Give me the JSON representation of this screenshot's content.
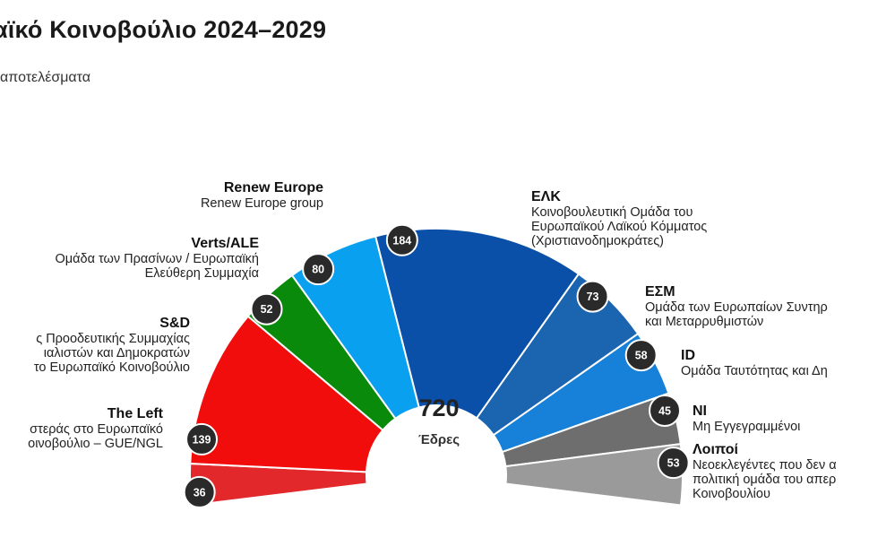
{
  "header": {
    "title": "αϊκό Κοινοβούλιο 2024–2029",
    "subtitle": "αποτελέσματα"
  },
  "chart_data": {
    "type": "parliament-hemicycle",
    "total_seats": "720",
    "total_label": "Έδρες",
    "groups": [
      {
        "key": "left",
        "name": "The Left",
        "desc": "στεράς στο Ευρωπαϊκό\nοινοβούλιο – GUE/NGL",
        "seats": 36,
        "color": "#e3282c"
      },
      {
        "key": "sd",
        "name": "S&D",
        "desc": "ς Προοδευτικής Συμμαχίας\nιαλιστών και Δημοκρατών\nτο Ευρωπαϊκό Κοινοβούλιο",
        "seats": 139,
        "color": "#f20d0d"
      },
      {
        "key": "verts",
        "name": "Verts/ALE",
        "desc": "Ομάδα των Πρασίνων / Ευρωπαϊκή\nΕλεύθερη Συμμαχία",
        "seats": 52,
        "color": "#0a8a0a"
      },
      {
        "key": "renew",
        "name": "Renew Europe",
        "desc": "Renew Europe group",
        "seats": 80,
        "color": "#0aa0f0"
      },
      {
        "key": "epp",
        "name": "ΕΛΚ",
        "desc": "Κοινοβουλευτική Ομάδα του\nΕυρωπαϊκού Λαϊκού Κόμματος\n(Χριστιανοδημοκράτες)",
        "seats": 184,
        "color": "#0a4fa8"
      },
      {
        "key": "ecr",
        "name": "ΕΣΜ",
        "desc": "Ομάδα των Ευρωπαίων Συντηρ\nκαι Μεταρρυθμιστών",
        "seats": 73,
        "color": "#1a64b0"
      },
      {
        "key": "id",
        "name": "ID",
        "desc": "Ομάδα Ταυτότητας και Δη",
        "seats": 58,
        "color": "#1780d8"
      },
      {
        "key": "ni",
        "name": "NI",
        "desc": "Μη Εγγεγραμμένοι",
        "seats": 45,
        "color": "#6e6e6e"
      },
      {
        "key": "others",
        "name": "Λοιποί",
        "desc": "Νεοεκλεγέντες που δεν α\nπολιτική ομάδα του απερ\nΚοινοβουλίου",
        "seats": 53,
        "color": "#9a9a9a"
      }
    ]
  }
}
